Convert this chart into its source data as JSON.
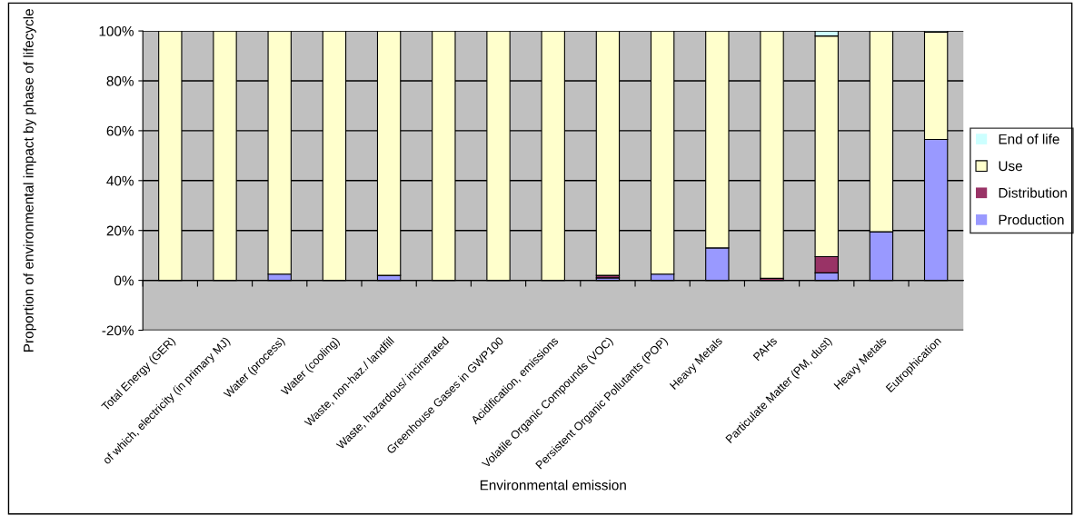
{
  "chart_data": {
    "type": "bar",
    "stacked": true,
    "xlabel": "Environmental emission",
    "ylabel": "Proportion of environmental impact by phase of lifecycle",
    "categories": [
      "Total Energy (GER)",
      "of which, electricity (in primary MJ)",
      "Water (process)",
      "Water (cooling)",
      "Waste, non-haz./ landfill",
      "Waste, hazardous/ incinerated",
      "Greenhouse Gases in GWP100",
      "Acidification, emissions",
      "Volatile Organic Compounds (VOC)",
      "Persistent Organic Pollutants (POP)",
      "Heavy Metals",
      "PAHs",
      "Particulate Matter (PM, dust)",
      "Heavy Metals",
      "Eutrophication"
    ],
    "series": [
      {
        "name": "Production",
        "color": "#9999ff",
        "values": [
          null,
          null,
          2.5,
          null,
          2,
          null,
          null,
          null,
          1,
          2.5,
          13,
          null,
          3,
          19.5,
          56.5
        ]
      },
      {
        "name": "Distribution",
        "color": "#993366",
        "values": [
          0,
          0,
          0,
          0,
          0,
          0,
          0,
          0,
          1,
          0,
          0,
          0.8,
          6.5,
          0,
          0
        ]
      },
      {
        "name": "Use",
        "color": "#ffffcc",
        "values": [
          100,
          100,
          97.5,
          100,
          98,
          100,
          100,
          100,
          98,
          97.5,
          87,
          99.2,
          88.5,
          80.5,
          43
        ]
      },
      {
        "name": "End of life",
        "color": "#ccffff",
        "values": [
          0,
          0,
          0,
          0,
          0,
          0,
          0,
          0,
          0,
          0,
          0,
          0,
          2,
          0,
          0.5
        ]
      }
    ],
    "ylim": [
      -20,
      100
    ],
    "yticks": [
      {
        "value": -20,
        "label": "-20%"
      },
      {
        "value": 0,
        "label": "0%"
      },
      {
        "value": 20,
        "label": "20%"
      },
      {
        "value": 40,
        "label": "40%"
      },
      {
        "value": 60,
        "label": "60%"
      },
      {
        "value": 80,
        "label": "80%"
      },
      {
        "value": 100,
        "label": "100%"
      }
    ],
    "grid": "y",
    "legend": "right"
  }
}
